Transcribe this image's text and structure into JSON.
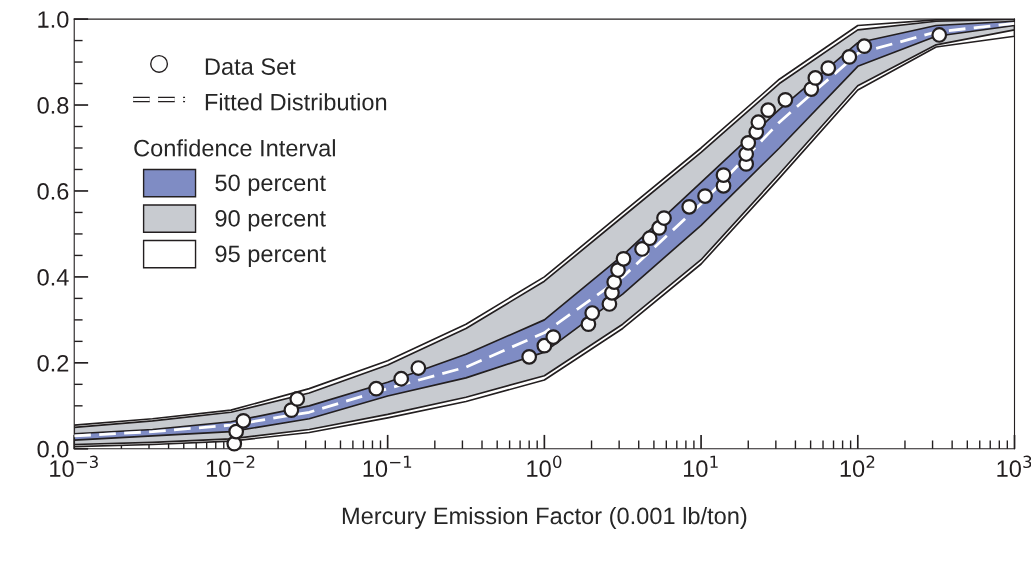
{
  "chart_data": {
    "type": "line",
    "xlabel": "Mercury Emission Factor (0.001 lb/ton)",
    "log": "x",
    "grid": false,
    "legend": "top left",
    "legend_title": "Confidence Interval",
    "xlim": [
      0.001,
      1000
    ],
    "ylim": [
      0,
      1
    ],
    "xticks": [
      {
        "value": 0.001,
        "label": "10$^{−3}$"
      },
      {
        "value": 0.01,
        "label": "10$^{−2}$"
      },
      {
        "value": 0.1,
        "label": "10$^{−1}$"
      },
      {
        "value": 1,
        "label": "10$^{0}$"
      },
      {
        "value": 10,
        "label": "10$^{1}$"
      },
      {
        "value": 100,
        "label": "10$^{2}$"
      },
      {
        "value": 1000,
        "label": "10$^{3}$"
      }
    ],
    "yticks": [
      {
        "value": 0,
        "label": "0.0"
      },
      {
        "value": 0.2,
        "label": "0.2"
      },
      {
        "value": 0.4,
        "label": "0.4"
      },
      {
        "value": 0.6,
        "label": "0.6"
      },
      {
        "value": 0.8,
        "label": "0.8"
      },
      {
        "value": 1,
        "label": "1.0"
      }
    ],
    "x": [
      0.001,
      0.00316,
      0.01,
      0.0316,
      0.1,
      0.316,
      1,
      3.16,
      10,
      31.6,
      100,
      316,
      1000
    ],
    "series": [
      {
        "name": "Data Set",
        "type": "scatter",
        "marker": "circle",
        "color": "#fdfdfd",
        "x": [
          0.0105,
          0.0108,
          0.012,
          0.0243,
          0.0265,
          0.0845,
          0.122,
          0.157,
          0.8,
          1.0,
          1.14,
          1.91,
          2.02,
          2.6,
          2.7,
          2.79,
          2.95,
          3.2,
          4.2,
          4.7,
          5.4,
          5.8,
          8.4,
          10.6,
          13.9,
          13.9,
          19.4,
          19.4,
          20.0,
          22.5,
          23.2,
          26.8,
          34.5,
          50.5,
          53.6,
          64.8,
          88.3,
          110,
          331
        ],
        "values": [
          0.012,
          0.04,
          0.065,
          0.09,
          0.116,
          0.14,
          0.163,
          0.188,
          0.214,
          0.24,
          0.26,
          0.29,
          0.316,
          0.337,
          0.363,
          0.388,
          0.416,
          0.442,
          0.465,
          0.49,
          0.514,
          0.537,
          0.563,
          0.588,
          0.612,
          0.637,
          0.663,
          0.686,
          0.712,
          0.737,
          0.76,
          0.788,
          0.812,
          0.837,
          0.863,
          0.886,
          0.912,
          0.937,
          0.963
        ]
      },
      {
        "name": "Fitted Distribution",
        "line_style": "dashed",
        "color": "#ffffff",
        "values": [
          0.03,
          0.04,
          0.055,
          0.085,
          0.14,
          0.19,
          0.27,
          0.4,
          0.57,
          0.76,
          0.92,
          0.97,
          0.99
        ]
      },
      {
        "name": "50 percent",
        "color": "#7f8cc4",
        "values": [
          null,
          null,
          null,
          null,
          null,
          null,
          null,
          null,
          null,
          null,
          null,
          null,
          null
        ],
        "upper": [
          0.035,
          0.045,
          0.063,
          0.1,
          0.155,
          0.22,
          0.3,
          0.45,
          0.62,
          0.79,
          0.945,
          0.985,
          0.995
        ],
        "lower": [
          0.02,
          0.03,
          0.04,
          0.07,
          0.123,
          0.165,
          0.225,
          0.36,
          0.52,
          0.7,
          0.89,
          0.96,
          0.985
        ]
      },
      {
        "name": "90 percent",
        "color": "#c8cbd0",
        "values": [
          null,
          null,
          null,
          null,
          null,
          null,
          null,
          null,
          null,
          null,
          null,
          null,
          null
        ],
        "upper": [
          0.05,
          0.065,
          0.085,
          0.13,
          0.195,
          0.28,
          0.39,
          0.54,
          0.69,
          0.85,
          0.975,
          0.995,
          1.0
        ],
        "lower": [
          0.01,
          0.015,
          0.023,
          0.045,
          0.08,
          0.12,
          0.17,
          0.29,
          0.44,
          0.64,
          0.845,
          0.94,
          0.975
        ]
      },
      {
        "name": "95 percent",
        "color": "#ffffff",
        "values": [
          null,
          null,
          null,
          null,
          null,
          null,
          null,
          null,
          null,
          null,
          null,
          null,
          null
        ],
        "upper": [
          0.055,
          0.07,
          0.09,
          0.14,
          0.205,
          0.29,
          0.4,
          0.55,
          0.7,
          0.86,
          0.985,
          0.998,
          1.0
        ],
        "lower": [
          0.005,
          0.01,
          0.018,
          0.038,
          0.072,
          0.11,
          0.16,
          0.28,
          0.43,
          0.63,
          0.835,
          0.935,
          0.96
        ]
      }
    ]
  }
}
